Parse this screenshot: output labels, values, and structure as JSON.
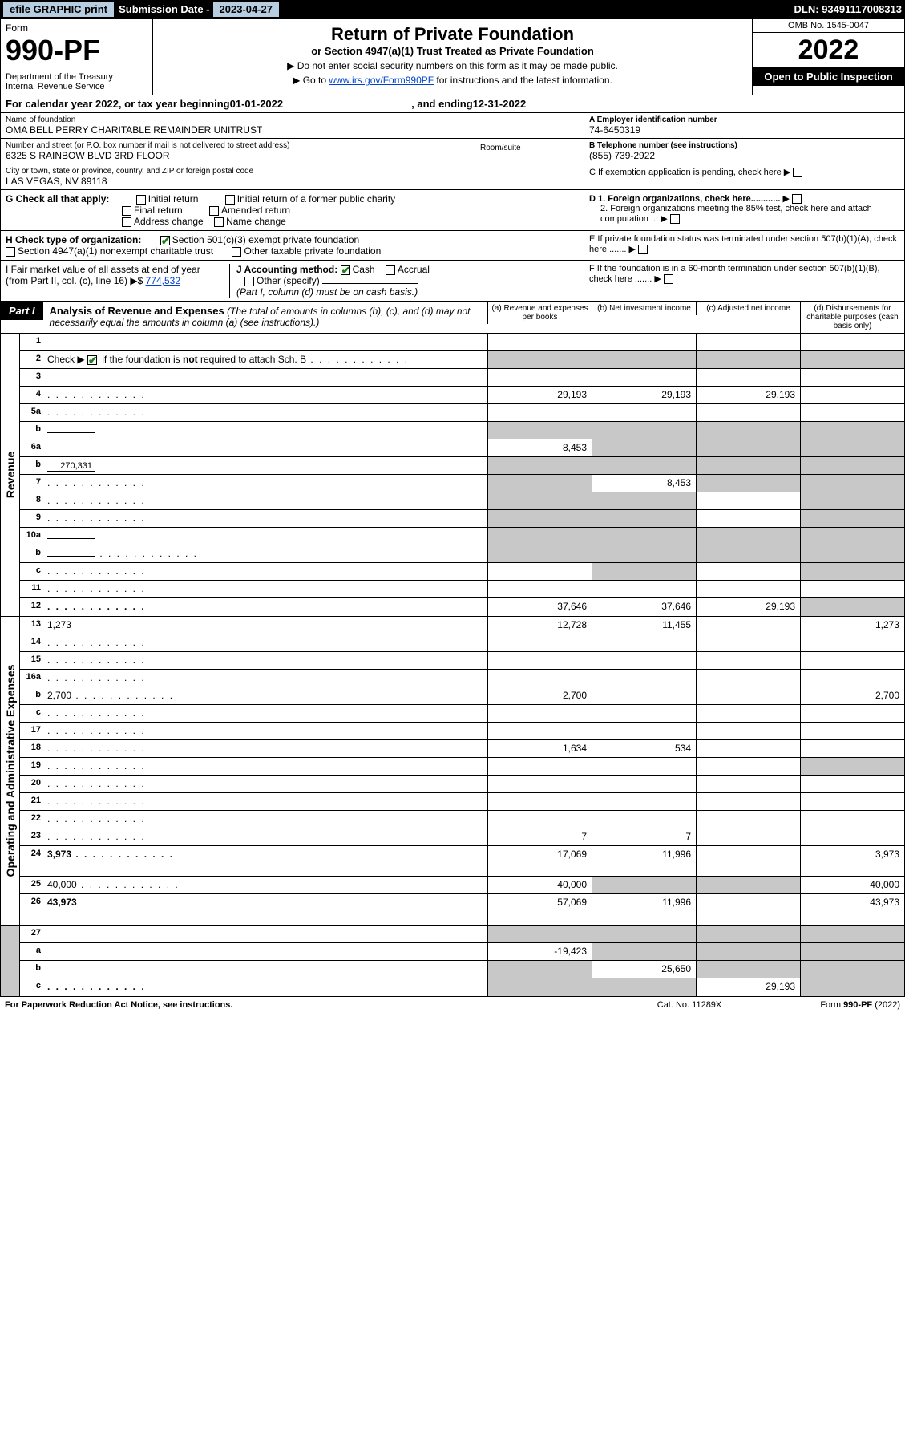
{
  "topbar": {
    "efile": "efile GRAPHIC print",
    "sub_label": "Submission Date - ",
    "sub_date": "2023-04-27",
    "dln": "DLN: 93491117008313"
  },
  "header": {
    "form": "Form",
    "form_no": "990-PF",
    "dept": "Department of the Treasury\nInternal Revenue Service",
    "title": "Return of Private Foundation",
    "sub": "or Section 4947(a)(1) Trust Treated as Private Foundation",
    "note1": "▶ Do not enter social security numbers on this form as it may be made public.",
    "note2_pre": "▶ Go to ",
    "note2_link": "www.irs.gov/Form990PF",
    "note2_post": " for instructions and the latest information.",
    "omb": "OMB No. 1545-0047",
    "year": "2022",
    "inspect": "Open to Public Inspection"
  },
  "cal": {
    "pre": "For calendar year 2022, or tax year beginning ",
    "begin": "01-01-2022",
    "mid": " , and ending ",
    "end": "12-31-2022"
  },
  "entity": {
    "name_label": "Name of foundation",
    "name": "OMA BELL PERRY CHARITABLE REMAINDER UNITRUST",
    "addr_label": "Number and street (or P.O. box number if mail is not delivered to street address)",
    "addr": "6325 S RAINBOW BLVD 3RD FLOOR",
    "room_label": "Room/suite",
    "city_label": "City or town, state or province, country, and ZIP or foreign postal code",
    "city": "LAS VEGAS, NV  89118",
    "ein_label": "A Employer identification number",
    "ein": "74-6450319",
    "phone_label": "B Telephone number (see instructions)",
    "phone": "(855) 739-2922",
    "c": "C If exemption application is pending, check here",
    "d1": "D 1. Foreign organizations, check here............",
    "d2": "2. Foreign organizations meeting the 85% test, check here and attach computation ...",
    "e": "E If private foundation status was terminated under section 507(b)(1)(A), check here .......",
    "f": "F If the foundation is in a 60-month termination under section 507(b)(1)(B), check here .......",
    "g_label": "G Check all that apply:",
    "g_opts": [
      "Initial return",
      "Initial return of a former public charity",
      "Final return",
      "Amended return",
      "Address change",
      "Name change"
    ],
    "h_label": "H Check type of organization:",
    "h1": "Section 501(c)(3) exempt private foundation",
    "h2": "Section 4947(a)(1) nonexempt charitable trust",
    "h3": "Other taxable private foundation",
    "i_label": "I Fair market value of all assets at end of year (from Part II, col. (c), line 16) ▶$",
    "i_val": "774,532",
    "j_label": "J Accounting method:",
    "j1": "Cash",
    "j2": "Accrual",
    "j3": "Other (specify)",
    "j_note": "(Part I, column (d) must be on cash basis.)"
  },
  "part1": {
    "tab": "Part I",
    "title": "Analysis of Revenue and Expenses",
    "title_note": " (The total of amounts in columns (b), (c), and (d) may not necessarily equal the amounts in column (a) (see instructions).)",
    "col_a": "(a) Revenue and expenses per books",
    "col_b": "(b) Net investment income",
    "col_c": "(c) Adjusted net income",
    "col_d": "(d) Disbursements for charitable purposes (cash basis only)"
  },
  "side": {
    "rev": "Revenue",
    "exp": "Operating and Administrative Expenses"
  },
  "rows": [
    {
      "n": "1",
      "d": "",
      "a": "",
      "b": "",
      "c": "",
      "grey": []
    },
    {
      "n": "2",
      "d": "",
      "a": "",
      "b": "",
      "c": "",
      "grey": [
        "a",
        "b",
        "c",
        "d"
      ],
      "bold_not": true,
      "dots": true
    },
    {
      "n": "3",
      "d": "",
      "a": "",
      "b": "",
      "c": "",
      "grey": []
    },
    {
      "n": "4",
      "d": "",
      "a": "29,193",
      "b": "29,193",
      "c": "29,193",
      "grey": [],
      "dots": true
    },
    {
      "n": "5a",
      "d": "",
      "a": "",
      "b": "",
      "c": "",
      "grey": [],
      "dots": true
    },
    {
      "n": "b",
      "d": "",
      "a": "",
      "b": "",
      "c": "",
      "grey": [
        "a",
        "b",
        "c",
        "d"
      ],
      "inline": ""
    },
    {
      "n": "6a",
      "d": "",
      "a": "8,453",
      "b": "",
      "c": "",
      "grey": [
        "b",
        "c",
        "d"
      ]
    },
    {
      "n": "b",
      "d": "",
      "a": "",
      "b": "",
      "c": "",
      "grey": [
        "a",
        "b",
        "c",
        "d"
      ],
      "inline": "270,331"
    },
    {
      "n": "7",
      "d": "",
      "a": "",
      "b": "8,453",
      "c": "",
      "grey": [
        "a",
        "c",
        "d"
      ],
      "dots": true
    },
    {
      "n": "8",
      "d": "",
      "a": "",
      "b": "",
      "c": "",
      "grey": [
        "a",
        "b",
        "d"
      ],
      "dots": true
    },
    {
      "n": "9",
      "d": "",
      "a": "",
      "b": "",
      "c": "",
      "grey": [
        "a",
        "b",
        "d"
      ],
      "dots": true
    },
    {
      "n": "10a",
      "d": "",
      "a": "",
      "b": "",
      "c": "",
      "grey": [
        "a",
        "b",
        "c",
        "d"
      ],
      "inline": ""
    },
    {
      "n": "b",
      "d": "",
      "a": "",
      "b": "",
      "c": "",
      "grey": [
        "a",
        "b",
        "c",
        "d"
      ],
      "inline": "",
      "dots": true
    },
    {
      "n": "c",
      "d": "",
      "a": "",
      "b": "",
      "c": "",
      "grey": [
        "b",
        "d"
      ],
      "dots": true
    },
    {
      "n": "11",
      "d": "",
      "a": "",
      "b": "",
      "c": "",
      "grey": [],
      "dots": true
    },
    {
      "n": "12",
      "d": "",
      "a": "37,646",
      "b": "37,646",
      "c": "29,193",
      "grey": [
        "d"
      ],
      "bold": true,
      "dots": true
    }
  ],
  "exp_rows": [
    {
      "n": "13",
      "d": "1,273",
      "a": "12,728",
      "b": "11,455",
      "c": ""
    },
    {
      "n": "14",
      "d": "",
      "a": "",
      "b": "",
      "c": "",
      "dots": true
    },
    {
      "n": "15",
      "d": "",
      "a": "",
      "b": "",
      "c": "",
      "dots": true
    },
    {
      "n": "16a",
      "d": "",
      "a": "",
      "b": "",
      "c": "",
      "dots": true
    },
    {
      "n": "b",
      "d": "2,700",
      "a": "2,700",
      "b": "",
      "c": "",
      "dots": true
    },
    {
      "n": "c",
      "d": "",
      "a": "",
      "b": "",
      "c": "",
      "dots": true
    },
    {
      "n": "17",
      "d": "",
      "a": "",
      "b": "",
      "c": "",
      "dots": true
    },
    {
      "n": "18",
      "d": "",
      "a": "1,634",
      "b": "534",
      "c": "",
      "dots": true
    },
    {
      "n": "19",
      "d": "",
      "a": "",
      "b": "",
      "c": "",
      "grey": [
        "d"
      ],
      "dots": true
    },
    {
      "n": "20",
      "d": "",
      "a": "",
      "b": "",
      "c": "",
      "dots": true
    },
    {
      "n": "21",
      "d": "",
      "a": "",
      "b": "",
      "c": "",
      "dots": true
    },
    {
      "n": "22",
      "d": "",
      "a": "",
      "b": "",
      "c": "",
      "dots": true
    },
    {
      "n": "23",
      "d": "",
      "a": "7",
      "b": "7",
      "c": "",
      "dots": true
    },
    {
      "n": "24",
      "d": "3,973",
      "a": "17,069",
      "b": "11,996",
      "c": "",
      "bold": true,
      "dots": true,
      "tall": true
    },
    {
      "n": "25",
      "d": "40,000",
      "a": "40,000",
      "b": "",
      "c": "",
      "grey": [
        "b",
        "c"
      ],
      "dots": true
    },
    {
      "n": "26",
      "d": "43,973",
      "a": "57,069",
      "b": "11,996",
      "c": "",
      "bold": true,
      "tall": true
    }
  ],
  "bottom_rows": [
    {
      "n": "27",
      "d": "",
      "a": "",
      "b": "",
      "c": "",
      "grey": [
        "a",
        "b",
        "c",
        "d"
      ]
    },
    {
      "n": "a",
      "d": "",
      "a": "-19,423",
      "b": "",
      "c": "",
      "grey": [
        "b",
        "c",
        "d"
      ],
      "bold": true
    },
    {
      "n": "b",
      "d": "",
      "a": "",
      "b": "25,650",
      "c": "",
      "grey": [
        "a",
        "c",
        "d"
      ],
      "bold": true
    },
    {
      "n": "c",
      "d": "",
      "a": "",
      "b": "",
      "c": "29,193",
      "grey": [
        "a",
        "b",
        "d"
      ],
      "bold": true,
      "dots": true
    }
  ],
  "footer": {
    "left": "For Paperwork Reduction Act Notice, see instructions.",
    "mid": "Cat. No. 11289X",
    "right": "Form 990-PF (2022)"
  }
}
